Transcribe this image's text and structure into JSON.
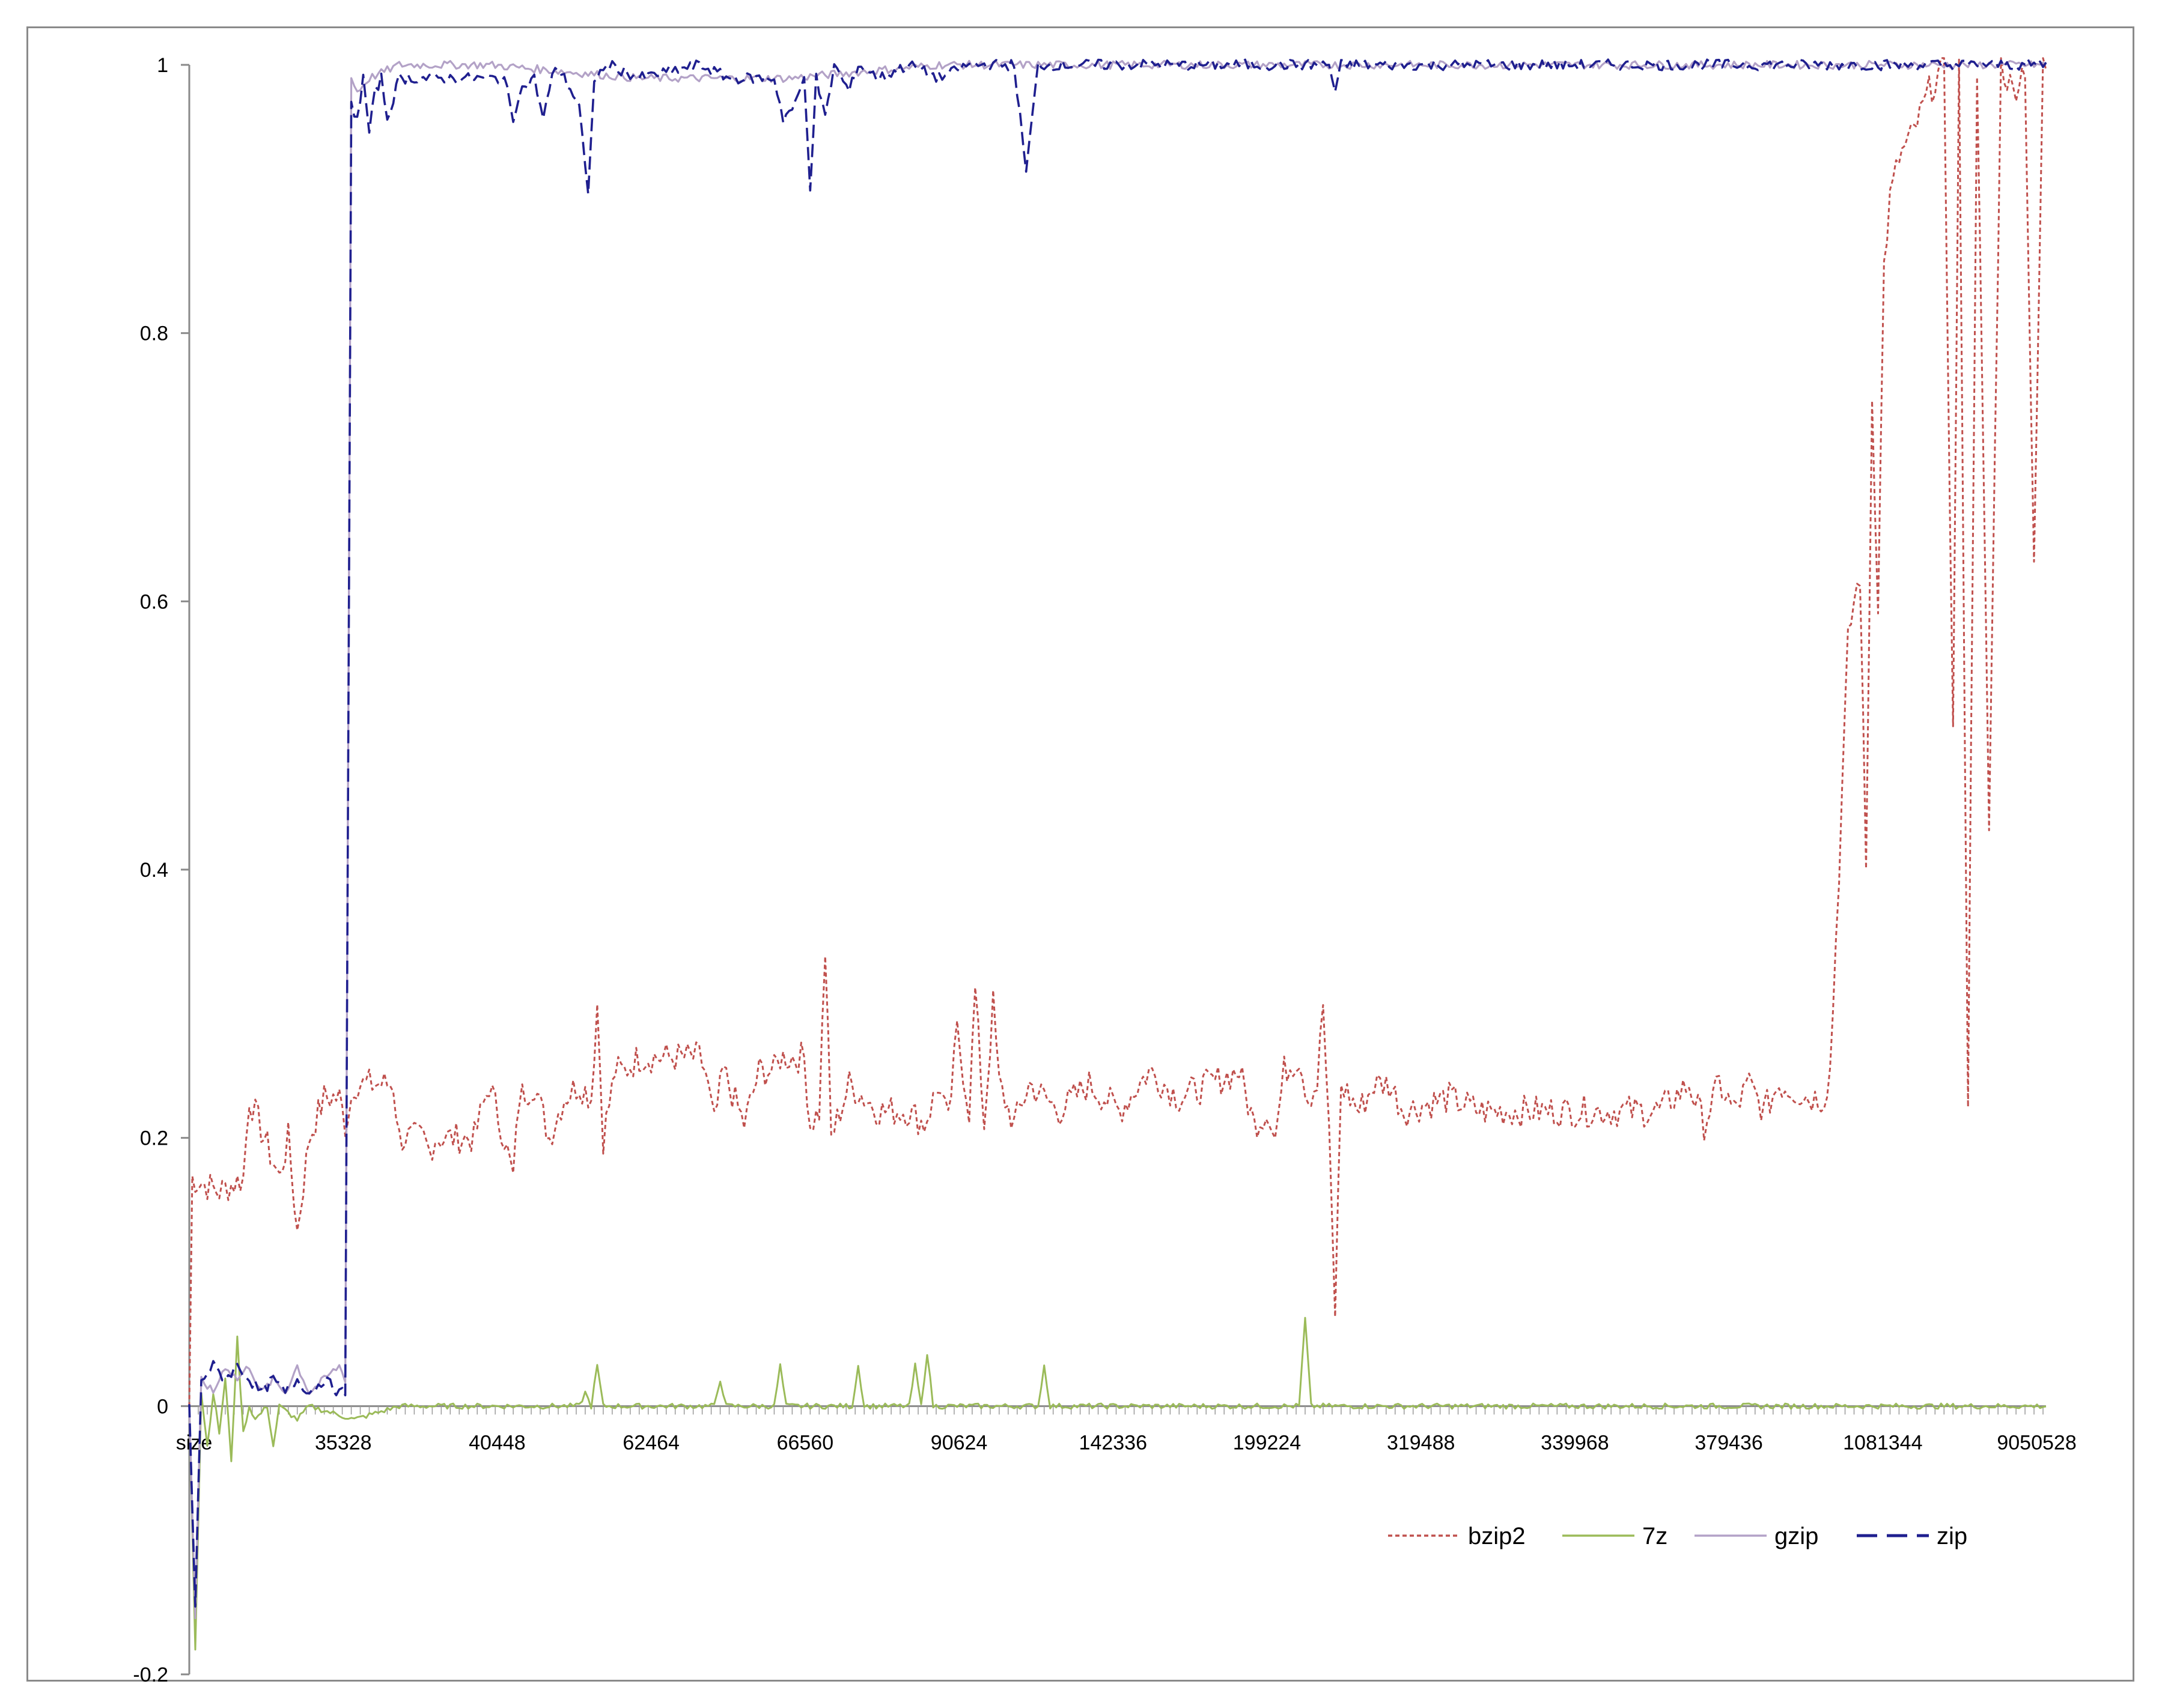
{
  "chart_data": {
    "type": "line",
    "title": "",
    "xlabel": "",
    "ylabel": "",
    "ylim": [
      -0.2,
      1.0
    ],
    "yticks": [
      -0.2,
      0,
      0.2,
      0.4,
      0.6,
      0.8,
      1
    ],
    "ytick_labels": [
      "-0.2",
      "0",
      "0.2",
      "0.4",
      "0.6",
      "0.8",
      "1"
    ],
    "x_tick_labels": [
      "size",
      "35328",
      "40448",
      "62464",
      "66560",
      "90624",
      "142336",
      "199224",
      "319488",
      "339968",
      "379436",
      "1081344",
      "9050528"
    ],
    "grid": false,
    "legend_position": "bottom-right",
    "n_points": 620,
    "series": [
      {
        "name": "bzip2",
        "color": "#c0504d",
        "dash": "dotted",
        "keypoints": [
          [
            0,
            0
          ],
          [
            1,
            0.17
          ],
          [
            10,
            0.16
          ],
          [
            18,
            0.17
          ],
          [
            20,
            0.23
          ],
          [
            25,
            0.2
          ],
          [
            30,
            0.17
          ],
          [
            33,
            0.2
          ],
          [
            36,
            0.13
          ],
          [
            40,
            0.2
          ],
          [
            45,
            0.23
          ],
          [
            50,
            0.23
          ],
          [
            52,
            0.21
          ],
          [
            55,
            0.24
          ],
          [
            60,
            0.24
          ],
          [
            68,
            0.24
          ],
          [
            70,
            0.2
          ],
          [
            78,
            0.2
          ],
          [
            80,
            0.19
          ],
          [
            82,
            0.2
          ],
          [
            95,
            0.2
          ],
          [
            100,
            0.24
          ],
          [
            105,
            0.2
          ],
          [
            108,
            0.17
          ],
          [
            110,
            0.23
          ],
          [
            115,
            0.24
          ],
          [
            120,
            0.2
          ],
          [
            125,
            0.23
          ],
          [
            130,
            0.24
          ],
          [
            134,
            0.23
          ],
          [
            136,
            0.3
          ],
          [
            138,
            0.2
          ],
          [
            142,
            0.25
          ],
          [
            145,
            0.25
          ],
          [
            150,
            0.26
          ],
          [
            170,
            0.26
          ],
          [
            172,
            0.25
          ],
          [
            175,
            0.21
          ],
          [
            178,
            0.25
          ],
          [
            185,
            0.21
          ],
          [
            190,
            0.25
          ],
          [
            195,
            0.25
          ],
          [
            197,
            0.26
          ],
          [
            200,
            0.26
          ],
          [
            205,
            0.26
          ],
          [
            207,
            0.21
          ],
          [
            210,
            0.22
          ],
          [
            212,
            0.34
          ],
          [
            214,
            0.2
          ],
          [
            217,
            0.22
          ],
          [
            220,
            0.24
          ],
          [
            230,
            0.22
          ],
          [
            240,
            0.22
          ],
          [
            245,
            0.21
          ],
          [
            250,
            0.24
          ],
          [
            253,
            0.21
          ],
          [
            256,
            0.28
          ],
          [
            260,
            0.22
          ],
          [
            262,
            0.31
          ],
          [
            265,
            0.21
          ],
          [
            268,
            0.3
          ],
          [
            270,
            0.24
          ],
          [
            275,
            0.21
          ],
          [
            280,
            0.24
          ],
          [
            290,
            0.22
          ],
          [
            300,
            0.24
          ],
          [
            310,
            0.22
          ],
          [
            320,
            0.25
          ],
          [
            330,
            0.23
          ],
          [
            340,
            0.24
          ],
          [
            350,
            0.25
          ],
          [
            355,
            0.21
          ],
          [
            360,
            0.22
          ],
          [
            362,
            0.2
          ],
          [
            365,
            0.25
          ],
          [
            370,
            0.26
          ],
          [
            373,
            0.23
          ],
          [
            376,
            0.24
          ],
          [
            378,
            0.3
          ],
          [
            380,
            0.2
          ],
          [
            382,
            0.07
          ],
          [
            384,
            0.24
          ],
          [
            390,
            0.22
          ],
          [
            395,
            0.24
          ],
          [
            400,
            0.24
          ],
          [
            405,
            0.22
          ],
          [
            420,
            0.23
          ],
          [
            430,
            0.22
          ],
          [
            450,
            0.22
          ],
          [
            460,
            0.22
          ],
          [
            490,
            0.22
          ],
          [
            495,
            0.23
          ],
          [
            500,
            0.24
          ],
          [
            505,
            0.21
          ],
          [
            510,
            0.24
          ],
          [
            515,
            0.22
          ],
          [
            520,
            0.24
          ],
          [
            525,
            0.22
          ],
          [
            530,
            0.24
          ],
          [
            540,
            0.23
          ],
          [
            545,
            0.23
          ],
          [
            547,
            0.25
          ],
          [
            550,
            0.4
          ],
          [
            553,
            0.57
          ],
          [
            555,
            0.6
          ],
          [
            557,
            0.62
          ],
          [
            559,
            0.4
          ],
          [
            561,
            0.75
          ],
          [
            563,
            0.6
          ],
          [
            565,
            0.85
          ],
          [
            567,
            0.9
          ],
          [
            570,
            0.93
          ],
          [
            575,
            0.95
          ],
          [
            580,
            0.98
          ],
          [
            585,
            1.0
          ],
          [
            588,
            0.5
          ],
          [
            590,
            1.0
          ],
          [
            593,
            0.23
          ],
          [
            596,
            1.0
          ],
          [
            600,
            0.43
          ],
          [
            604,
            1.0
          ],
          [
            608,
            0.98
          ],
          [
            612,
            1.0
          ],
          [
            615,
            0.62
          ],
          [
            618,
            1.0
          ],
          [
            619,
            1.0
          ]
        ]
      },
      {
        "name": "7z",
        "color": "#9bbb59",
        "dash": "solid",
        "keypoints": [
          [
            0,
            0
          ],
          [
            2,
            -0.18
          ],
          [
            4,
            0.01
          ],
          [
            6,
            -0.03
          ],
          [
            8,
            0.01
          ],
          [
            10,
            -0.02
          ],
          [
            12,
            0.02
          ],
          [
            14,
            -0.04
          ],
          [
            16,
            0.05
          ],
          [
            18,
            -0.02
          ],
          [
            20,
            0.0
          ],
          [
            22,
            -0.01
          ],
          [
            26,
            0.0
          ],
          [
            28,
            -0.03
          ],
          [
            30,
            0.0
          ],
          [
            36,
            -0.01
          ],
          [
            40,
            0.0
          ],
          [
            55,
            -0.01
          ],
          [
            70,
            0.0
          ],
          [
            130,
            0.0
          ],
          [
            132,
            0.01
          ],
          [
            134,
            0.0
          ],
          [
            136,
            0.03
          ],
          [
            138,
            0.0
          ],
          [
            175,
            0.0
          ],
          [
            177,
            0.02
          ],
          [
            179,
            0.0
          ],
          [
            195,
            0.0
          ],
          [
            197,
            0.03
          ],
          [
            199,
            0.0
          ],
          [
            221,
            0.0
          ],
          [
            223,
            0.03
          ],
          [
            225,
            0.0
          ],
          [
            240,
            0.0
          ],
          [
            242,
            0.03
          ],
          [
            244,
            0.0
          ],
          [
            246,
            0.04
          ],
          [
            248,
            0.0
          ],
          [
            283,
            0.0
          ],
          [
            285,
            0.03
          ],
          [
            287,
            0.0
          ],
          [
            370,
            0.0
          ],
          [
            372,
            0.065
          ],
          [
            374,
            0.0
          ],
          [
            619,
            0.0
          ]
        ]
      },
      {
        "name": "gzip",
        "color": "#b3a2c7",
        "dash": "solid",
        "keypoints": [
          [
            0,
            0
          ],
          [
            2,
            -0.16
          ],
          [
            4,
            0.02
          ],
          [
            8,
            0.01
          ],
          [
            12,
            0.03
          ],
          [
            16,
            0.02
          ],
          [
            20,
            0.03
          ],
          [
            24,
            0.01
          ],
          [
            28,
            0.02
          ],
          [
            32,
            0.01
          ],
          [
            36,
            0.03
          ],
          [
            40,
            0.01
          ],
          [
            45,
            0.02
          ],
          [
            50,
            0.03
          ],
          [
            52,
            0.02
          ],
          [
            54,
            0.99
          ],
          [
            56,
            0.98
          ],
          [
            60,
            0.99
          ],
          [
            70,
            1.0
          ],
          [
            100,
            1.0
          ],
          [
            150,
            0.99
          ],
          [
            200,
            0.99
          ],
          [
            250,
            1.0
          ],
          [
            300,
            1.0
          ],
          [
            400,
            1.0
          ],
          [
            500,
            1.0
          ],
          [
            619,
            1.0
          ]
        ]
      },
      {
        "name": "zip",
        "color": "#1f1f8f",
        "dash": "dashed",
        "keypoints": [
          [
            0,
            0
          ],
          [
            2,
            -0.15
          ],
          [
            4,
            0.02
          ],
          [
            8,
            0.03
          ],
          [
            12,
            0.02
          ],
          [
            16,
            0.03
          ],
          [
            20,
            0.02
          ],
          [
            24,
            0.01
          ],
          [
            28,
            0.02
          ],
          [
            32,
            0.01
          ],
          [
            36,
            0.02
          ],
          [
            40,
            0.01
          ],
          [
            45,
            0.02
          ],
          [
            50,
            0.01
          ],
          [
            52,
            0.01
          ],
          [
            54,
            0.97
          ],
          [
            56,
            0.96
          ],
          [
            58,
            0.99
          ],
          [
            60,
            0.95
          ],
          [
            62,
            0.98
          ],
          [
            64,
            0.99
          ],
          [
            66,
            0.96
          ],
          [
            70,
            0.99
          ],
          [
            75,
            0.99
          ],
          [
            80,
            0.99
          ],
          [
            85,
            0.99
          ],
          [
            100,
            0.99
          ],
          [
            105,
            0.99
          ],
          [
            108,
            0.96
          ],
          [
            110,
            0.98
          ],
          [
            115,
            0.99
          ],
          [
            118,
            0.96
          ],
          [
            122,
            1.0
          ],
          [
            125,
            0.99
          ],
          [
            130,
            0.97
          ],
          [
            133,
            0.9
          ],
          [
            135,
            0.99
          ],
          [
            140,
            1.0
          ],
          [
            150,
            0.99
          ],
          [
            170,
            1.0
          ],
          [
            180,
            0.99
          ],
          [
            195,
            0.99
          ],
          [
            198,
            0.96
          ],
          [
            202,
            0.97
          ],
          [
            205,
            0.99
          ],
          [
            207,
            0.91
          ],
          [
            209,
            0.99
          ],
          [
            212,
            0.96
          ],
          [
            215,
            1.0
          ],
          [
            220,
            0.98
          ],
          [
            223,
            1.0
          ],
          [
            230,
            0.99
          ],
          [
            240,
            1.0
          ],
          [
            250,
            0.99
          ],
          [
            260,
            1.0
          ],
          [
            275,
            1.0
          ],
          [
            279,
            0.92
          ],
          [
            283,
            1.0
          ],
          [
            300,
            1.0
          ],
          [
            330,
            1.0
          ],
          [
            360,
            1.0
          ],
          [
            380,
            1.0
          ],
          [
            382,
            0.98
          ],
          [
            384,
            1.0
          ],
          [
            450,
            1.0
          ],
          [
            500,
            1.0
          ],
          [
            550,
            1.0
          ],
          [
            560,
            1.0
          ],
          [
            565,
            1.0
          ],
          [
            619,
            1.0
          ]
        ]
      }
    ]
  }
}
